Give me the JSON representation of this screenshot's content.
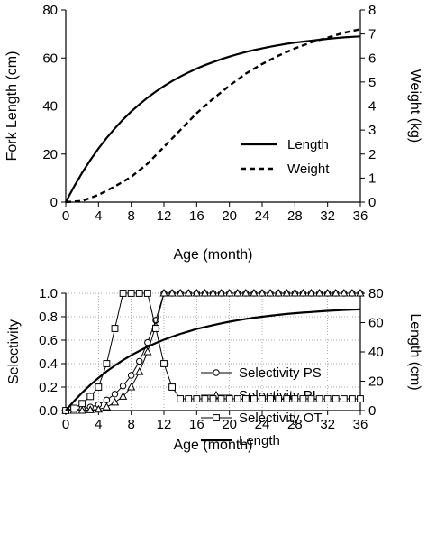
{
  "chart_data": [
    {
      "type": "line",
      "xlabel": "Age (month)",
      "ylabel": "Fork Length (cm)",
      "y2label": "Weight (kg)",
      "xlim": [
        0,
        36
      ],
      "ylim": [
        0,
        80
      ],
      "y2lim": [
        0,
        8
      ],
      "xticks": [
        "0",
        "4",
        "8",
        "12",
        "16",
        "20",
        "24",
        "28",
        "32",
        "36"
      ],
      "yticks": [
        "0",
        "20",
        "40",
        "60",
        "80"
      ],
      "y2ticks": [
        "0",
        "1",
        "2",
        "3",
        "4",
        "5",
        "6",
        "7",
        "8"
      ],
      "grid": false,
      "legend": "center-right",
      "series": [
        {
          "name": "Length",
          "axis": "left",
          "style": "solid",
          "x": [
            0,
            1,
            2,
            3,
            4,
            5,
            6,
            7,
            8,
            9,
            10,
            11,
            12,
            13,
            14,
            15,
            16,
            17,
            18,
            19,
            20,
            21,
            22,
            23,
            24,
            25,
            26,
            27,
            28,
            29,
            30,
            31,
            32,
            33,
            34,
            35,
            36
          ],
          "values": [
            0,
            6.4,
            12.2,
            17.5,
            22.3,
            26.7,
            30.7,
            34.4,
            37.7,
            40.7,
            43.5,
            46.0,
            48.3,
            50.4,
            52.3,
            54.0,
            55.6,
            57.0,
            58.3,
            59.5,
            60.6,
            61.6,
            62.5,
            63.3,
            64.0,
            64.7,
            65.3,
            65.9,
            66.4,
            66.8,
            67.2,
            67.6,
            68.0,
            68.3,
            68.6,
            68.8,
            69.0
          ]
        },
        {
          "name": "Weight",
          "axis": "right",
          "style": "dashed",
          "x": [
            0,
            2,
            4,
            6,
            8,
            10,
            12,
            14,
            16,
            18,
            20,
            22,
            24,
            26,
            28,
            30,
            32,
            34,
            36
          ],
          "values": [
            0,
            0.05,
            0.3,
            0.65,
            1.05,
            1.6,
            2.3,
            3.0,
            3.7,
            4.3,
            4.85,
            5.35,
            5.75,
            6.1,
            6.4,
            6.65,
            6.85,
            7.05,
            7.2
          ]
        }
      ]
    },
    {
      "type": "line",
      "xlabel": "Age (month)",
      "ylabel": "Selectivity",
      "y2label": "Length (cm)",
      "xlim": [
        0,
        36
      ],
      "ylim": [
        0,
        1.0
      ],
      "y2lim": [
        0,
        80
      ],
      "xticks": [
        "0",
        "4",
        "8",
        "12",
        "16",
        "20",
        "24",
        "28",
        "32",
        "36"
      ],
      "yticks": [
        "0.0",
        "0.2",
        "0.4",
        "0.6",
        "0.8",
        "1.0"
      ],
      "y2ticks": [
        "0",
        "20",
        "40",
        "60",
        "80"
      ],
      "grid": true,
      "legend": "center-right",
      "series": [
        {
          "name": "Selectivity PS",
          "axis": "left",
          "marker": "circle",
          "x": [
            0,
            1,
            2,
            3,
            4,
            5,
            6,
            7,
            8,
            9,
            10,
            11,
            12,
            13,
            14,
            15,
            16,
            17,
            18,
            19,
            20,
            21,
            22,
            23,
            24,
            25,
            26,
            27,
            28,
            29,
            30,
            31,
            32,
            33,
            34,
            35,
            36
          ],
          "values": [
            0,
            0.005,
            0.015,
            0.03,
            0.05,
            0.09,
            0.14,
            0.21,
            0.3,
            0.42,
            0.58,
            0.77,
            1.0,
            1.0,
            1.0,
            1.0,
            1.0,
            1.0,
            1.0,
            1.0,
            1.0,
            1.0,
            1.0,
            1.0,
            1.0,
            1.0,
            1.0,
            1.0,
            1.0,
            1.0,
            1.0,
            1.0,
            1.0,
            1.0,
            1.0,
            1.0,
            1.0
          ]
        },
        {
          "name": "Selectivity PL",
          "axis": "left",
          "marker": "triangle",
          "x": [
            0,
            1,
            2,
            3,
            4,
            5,
            6,
            7,
            8,
            9,
            10,
            11,
            12,
            13,
            14,
            15,
            16,
            17,
            18,
            19,
            20,
            21,
            22,
            23,
            24,
            25,
            26,
            27,
            28,
            29,
            30,
            31,
            32,
            33,
            34,
            35,
            36
          ],
          "values": [
            0,
            0,
            0,
            0.005,
            0.01,
            0.03,
            0.07,
            0.12,
            0.2,
            0.33,
            0.5,
            0.72,
            1.0,
            1.0,
            1.0,
            1.0,
            1.0,
            1.0,
            1.0,
            1.0,
            1.0,
            1.0,
            1.0,
            1.0,
            1.0,
            1.0,
            1.0,
            1.0,
            1.0,
            1.0,
            1.0,
            1.0,
            1.0,
            1.0,
            1.0,
            1.0,
            1.0
          ]
        },
        {
          "name": "Selectivity OT",
          "axis": "left",
          "marker": "square",
          "x": [
            0,
            1,
            2,
            3,
            4,
            5,
            6,
            7,
            8,
            9,
            10,
            11,
            12,
            13,
            14,
            15,
            16,
            17,
            18,
            19,
            20,
            21,
            22,
            23,
            24,
            25,
            26,
            27,
            28,
            29,
            30,
            31,
            32,
            33,
            34,
            35,
            36
          ],
          "values": [
            0,
            0.02,
            0.06,
            0.12,
            0.2,
            0.4,
            0.7,
            1.0,
            1.0,
            1.0,
            1.0,
            0.7,
            0.4,
            0.2,
            0.1,
            0.1,
            0.1,
            0.1,
            0.1,
            0.1,
            0.1,
            0.1,
            0.1,
            0.1,
            0.1,
            0.1,
            0.1,
            0.1,
            0.1,
            0.1,
            0.1,
            0.1,
            0.1,
            0.1,
            0.1,
            0.1,
            0.1
          ]
        },
        {
          "name": "Length",
          "axis": "right",
          "style": "solid",
          "x": [
            0,
            1,
            2,
            3,
            4,
            5,
            6,
            7,
            8,
            9,
            10,
            11,
            12,
            13,
            14,
            15,
            16,
            17,
            18,
            19,
            20,
            21,
            22,
            23,
            24,
            25,
            26,
            27,
            28,
            29,
            30,
            31,
            32,
            33,
            34,
            35,
            36
          ],
          "values": [
            0,
            6.4,
            12.2,
            17.5,
            22.3,
            26.7,
            30.7,
            34.4,
            37.7,
            40.7,
            43.5,
            46.0,
            48.3,
            50.4,
            52.3,
            54.0,
            55.6,
            57.0,
            58.3,
            59.5,
            60.6,
            61.6,
            62.5,
            63.3,
            64.0,
            64.7,
            65.3,
            65.9,
            66.4,
            66.8,
            67.2,
            67.6,
            68.0,
            68.3,
            68.6,
            68.8,
            69.0
          ]
        }
      ]
    }
  ]
}
